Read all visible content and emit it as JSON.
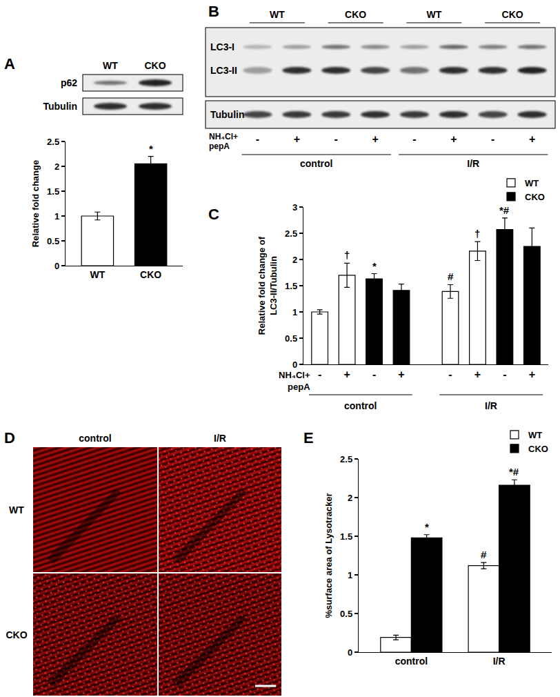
{
  "panel_letters": [
    "A",
    "B",
    "C",
    "D",
    "E"
  ],
  "blot_A": {
    "columns": [
      "WT",
      "CKO"
    ],
    "rows": [
      "p62",
      "Tubulin"
    ]
  },
  "blot_B": {
    "column_groups": [
      "WT",
      "CKO",
      "WT",
      "CKO"
    ],
    "rows": [
      "LC3-I",
      "LC3-II",
      "Tubulin"
    ],
    "treatment_label": "NH₄Cl+\npepA",
    "treatments": [
      "-",
      "+",
      "-",
      "+",
      "-",
      "+",
      "-",
      "+"
    ],
    "conditions": [
      "control",
      "I/R"
    ]
  },
  "image_D": {
    "columns": [
      "control",
      "I/R"
    ],
    "rows": [
      "WT",
      "CKO"
    ]
  },
  "chart_data": [
    {
      "type": "bar",
      "categories": [
        "WT",
        "CKO"
      ],
      "values": [
        1.0,
        2.05
      ],
      "errors": [
        0.08,
        0.15
      ],
      "colors": [
        "#ffffff",
        "#000000"
      ],
      "significance": [
        null,
        "*"
      ],
      "y_label": "Relative fold change",
      "ylim": [
        0,
        2.5
      ],
      "yticks": [
        0,
        0.5,
        1,
        1.5,
        2,
        2.5
      ]
    },
    {
      "type": "bar",
      "categories": [
        "-",
        "+",
        "-",
        "+",
        "-",
        "+",
        "-",
        "+"
      ],
      "groups": [
        "control",
        "I/R"
      ],
      "x_label": "NH₄Cl+\npepA",
      "y_label": "Relative fold change of\nLC3-II/Tubulin",
      "series": [
        {
          "name": "WT",
          "color": "#ffffff",
          "values": [
            1.0,
            1.7,
            null,
            null,
            1.39,
            2.16,
            null,
            null
          ],
          "errors": [
            0.04,
            0.23,
            null,
            null,
            0.13,
            0.18,
            null,
            null
          ],
          "significance": [
            null,
            "†",
            null,
            null,
            "#",
            "†",
            null,
            null
          ]
        },
        {
          "name": "CKO",
          "color": "#000000",
          "values": [
            null,
            null,
            1.63,
            1.41,
            null,
            null,
            2.57,
            2.25
          ],
          "errors": [
            null,
            null,
            0.1,
            0.12,
            null,
            null,
            0.22,
            0.35
          ],
          "significance": [
            null,
            null,
            "*",
            null,
            null,
            null,
            "*#",
            null
          ]
        }
      ],
      "ylim": [
        0,
        3
      ],
      "yticks": [
        0,
        0.5,
        1,
        1.5,
        2,
        2.5,
        3
      ],
      "legend": "top right"
    },
    {
      "type": "bar",
      "categories": [
        "control",
        "I/R"
      ],
      "y_label": "%surface area of Lysotracker",
      "series": [
        {
          "name": "WT",
          "color": "#ffffff",
          "values": [
            0.19,
            1.12
          ],
          "errors": [
            0.03,
            0.04
          ],
          "significance": [
            null,
            "#"
          ]
        },
        {
          "name": "CKO",
          "color": "#000000",
          "values": [
            1.48,
            2.16
          ],
          "errors": [
            0.04,
            0.07
          ],
          "significance": [
            "*",
            "*#"
          ]
        }
      ],
      "ylim": [
        0,
        2.5
      ],
      "yticks": [
        0,
        0.5,
        1,
        1.5,
        2,
        2.5
      ],
      "legend": "top right"
    }
  ]
}
